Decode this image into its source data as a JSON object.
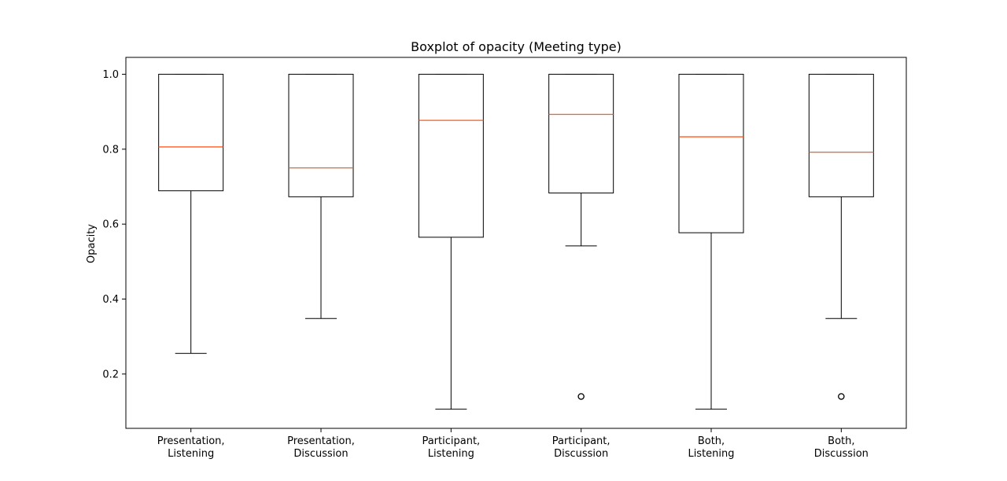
{
  "chart_data": {
    "type": "boxplot",
    "title": "Boxplot of opacity (Meeting type)",
    "xlabel": "",
    "ylabel": "Opacity",
    "ylim": [
      0.055,
      1.045
    ],
    "yticks": [
      0.2,
      0.4,
      0.6,
      0.8,
      1.0
    ],
    "ytick_labels": [
      "0.2",
      "0.4",
      "0.6",
      "0.8",
      "1.0"
    ],
    "grid": false,
    "categories": [
      [
        "Presentation,",
        "Listening"
      ],
      [
        "Presentation,",
        "Discussion"
      ],
      [
        "Participant,",
        "Listening"
      ],
      [
        "Participant,",
        "Discussion"
      ],
      [
        "Both,",
        "Listening"
      ],
      [
        "Both,",
        "Discussion"
      ]
    ],
    "boxes": [
      {
        "whislo": 0.255,
        "q1": 0.689,
        "med": 0.806,
        "q3": 1.0,
        "whishi": 1.0,
        "fliers": []
      },
      {
        "whislo": 0.348,
        "q1": 0.673,
        "med": 0.75,
        "q3": 1.0,
        "whishi": 1.0,
        "fliers": []
      },
      {
        "whislo": 0.106,
        "q1": 0.565,
        "med": 0.877,
        "q3": 1.0,
        "whishi": 1.0,
        "fliers": []
      },
      {
        "whislo": 0.542,
        "q1": 0.683,
        "med": 0.893,
        "q3": 1.0,
        "whishi": 1.0,
        "fliers": [
          0.14
        ]
      },
      {
        "whislo": 0.106,
        "q1": 0.577,
        "med": 0.833,
        "q3": 1.0,
        "whishi": 1.0,
        "fliers": []
      },
      {
        "whislo": 0.348,
        "q1": 0.673,
        "med": 0.792,
        "q3": 1.0,
        "whishi": 1.0,
        "fliers": [
          0.14
        ]
      }
    ],
    "colors": {
      "box": "#000000",
      "median": "#ff5a1e",
      "flier": "#000000"
    }
  }
}
